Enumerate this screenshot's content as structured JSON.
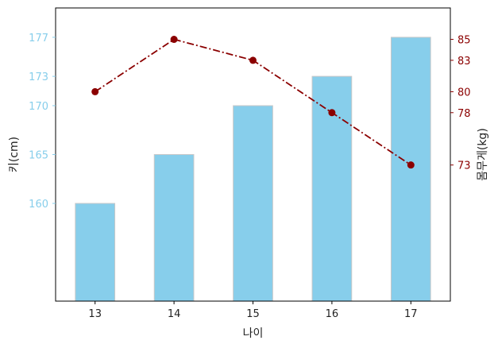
{
  "chart_data": {
    "type": "bar",
    "categories": [
      "13",
      "14",
      "15",
      "16",
      "17"
    ],
    "xlabel": "나이",
    "series": [
      {
        "name": "키(cm)",
        "type": "bar",
        "values": [
          160,
          165,
          170,
          173,
          177
        ],
        "axis": "left",
        "color": "#87CEEB",
        "edge_color": "#c8c8c8"
      },
      {
        "name": "몸무게(kg)",
        "type": "line",
        "values": [
          80,
          85,
          83,
          78,
          73
        ],
        "axis": "right",
        "color": "#8B0000",
        "line_style": "dash-dot",
        "marker": "circle"
      }
    ],
    "left_axis": {
      "label": "키(cm)",
      "ticks": [
        160,
        165,
        170,
        173,
        177
      ],
      "ylim": [
        150,
        180
      ],
      "color": "#87CEEB"
    },
    "right_axis": {
      "label": "몸무게(kg)",
      "ticks": [
        73,
        78,
        80,
        83,
        85
      ],
      "ylim": [
        60,
        88
      ],
      "color": "#8B0000"
    },
    "grid": false
  }
}
